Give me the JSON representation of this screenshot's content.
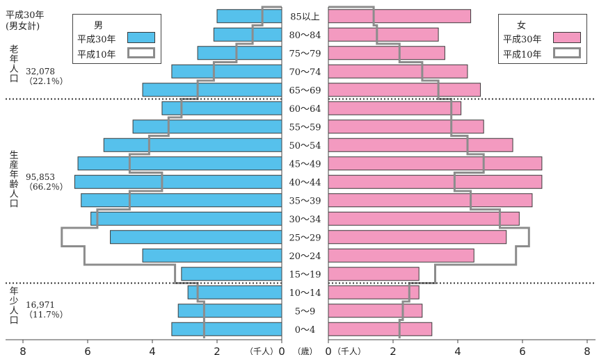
{
  "chart_data": {
    "type": "bar",
    "age_groups": [
      "0～4",
      "5～9",
      "10～14",
      "15～19",
      "20～24",
      "25～29",
      "30～34",
      "35～39",
      "40～44",
      "45～49",
      "50～54",
      "55～59",
      "60～64",
      "65～69",
      "70～74",
      "75～79",
      "80～84",
      "85以上"
    ],
    "series": [
      {
        "name": "平成30年",
        "group": "男",
        "side": "left",
        "values": [
          3.4,
          3.2,
          2.9,
          3.1,
          4.3,
          5.3,
          5.9,
          6.2,
          6.4,
          6.3,
          5.5,
          4.6,
          3.7,
          4.3,
          3.4,
          2.6,
          2.1,
          2.0
        ]
      },
      {
        "name": "平成10年",
        "group": "男",
        "side": "left",
        "values": [
          2.4,
          2.4,
          2.6,
          3.3,
          6.1,
          6.8,
          5.7,
          4.7,
          3.7,
          4.7,
          4.1,
          3.5,
          3.1,
          2.6,
          2.1,
          1.4,
          0.9,
          0.6
        ]
      },
      {
        "name": "平成30年",
        "group": "女",
        "side": "right",
        "values": [
          3.2,
          2.9,
          2.8,
          2.8,
          4.5,
          5.5,
          5.9,
          6.3,
          6.6,
          6.6,
          5.7,
          4.8,
          4.1,
          4.7,
          4.3,
          3.6,
          3.4,
          4.4
        ]
      },
      {
        "name": "平成10年",
        "group": "女",
        "side": "right",
        "values": [
          2.2,
          2.3,
          2.5,
          3.3,
          5.8,
          6.2,
          5.3,
          4.4,
          3.9,
          4.8,
          4.3,
          3.8,
          3.8,
          3.4,
          2.9,
          2.2,
          1.5,
          1.4
        ]
      }
    ],
    "x_ticks": [
      "8",
      "6",
      "4",
      "2",
      "0",
      "0",
      "2",
      "4",
      "6",
      "8"
    ],
    "x_unit_left": "（千人）",
    "x_unit_right": "（千人）",
    "age_unit": "（歳）",
    "xlim": [
      0,
      8
    ],
    "colors": {
      "male_2018": "#56c1ec",
      "female_2018": "#f39ac0",
      "1998_outline": "#8c8c8c",
      "bar_edge": "#3a3a3a"
    }
  },
  "total_label": [
    "平成30年",
    "(男女計)"
  ],
  "groups": [
    {
      "vert": "老年人口",
      "value": "32,078",
      "pct": "（22.1％）"
    },
    {
      "vert": "生産年齢人口",
      "value": "95,853",
      "pct": "（66.2％）"
    },
    {
      "vert": "年少人口",
      "value": "16,971",
      "pct": "（11.7％）"
    }
  ],
  "legend_male": {
    "title": "男",
    "items": [
      "平成30年",
      "平成10年"
    ]
  },
  "legend_female": {
    "title": "女",
    "items": [
      "平成30年",
      "平成10年"
    ]
  }
}
